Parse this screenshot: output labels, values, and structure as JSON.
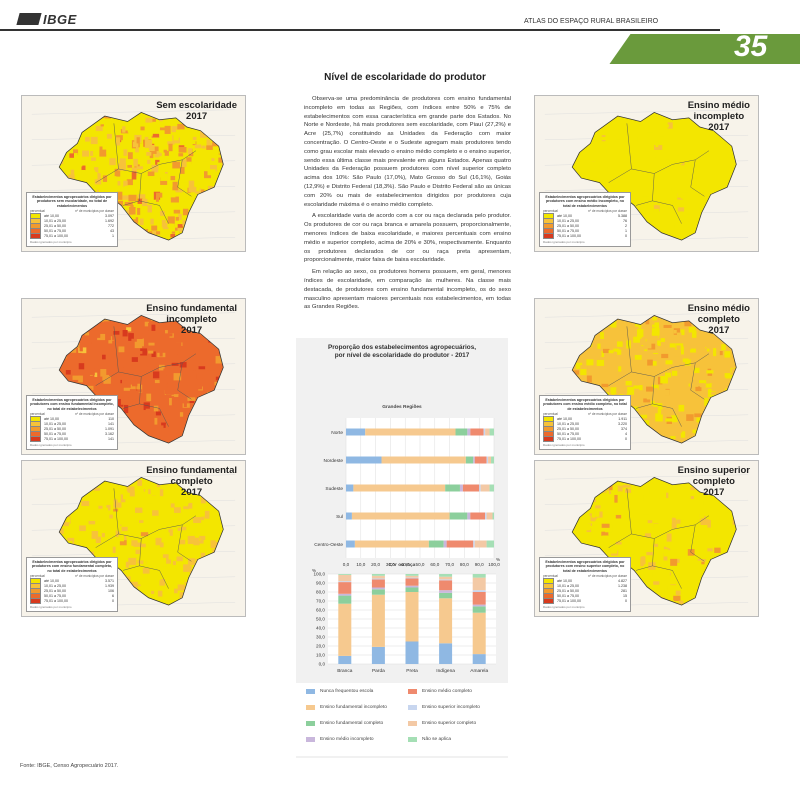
{
  "header": {
    "logo": "IBGE",
    "atlas_title": "ATLAS DO ESPAÇO RURAL BRASILEIRO",
    "page_number": "35"
  },
  "section_title": "Nível de escolaridade do produtor",
  "colors": {
    "band_green": "#6a9a3c",
    "classes": [
      "#f3e600",
      "#f7c23a",
      "#f29a2e",
      "#ec6a2c",
      "#d83a1e"
    ]
  },
  "legend_common": {
    "percentual": "percentual",
    "count_header": "nº de municípios por classe",
    "footnote": "Dados ignorados por município"
  },
  "legend_classes": [
    "até 10,00",
    "10,01 a 25,00",
    "25,01 a 50,00",
    "50,01 a 75,00",
    "75,01 a 100,00"
  ],
  "maps": [
    {
      "id": "sem-escolaridade",
      "title_lines": [
        "Sem escolaridade",
        "2017"
      ],
      "legend_title": "Estabelecimentos agropecuários dirigidos por produtores sem escolaridade, no total de estabelecimentos",
      "counts": [
        "3.097",
        "1.692",
        "772",
        "43",
        "1"
      ],
      "fill_mix": [
        0.35,
        0.35,
        0.25,
        0.05,
        0
      ]
    },
    {
      "id": "fundamental-incompleto",
      "title_lines": [
        "Ensino fundamental",
        "incompleto",
        "2017"
      ],
      "legend_title": "Estabelecimentos agropecuários dirigidos por produtores com ensino fundamental incompleto, no total de estabelecimentos",
      "counts": [
        "110",
        "141",
        "1.091",
        "3.162",
        "141"
      ],
      "fill_mix": [
        0,
        0.02,
        0.18,
        0.7,
        0.1
      ]
    },
    {
      "id": "fundamental-completo",
      "title_lines": [
        "Ensino fundamental",
        "completo",
        "2017"
      ],
      "legend_title": "Estabelecimentos agropecuários dirigidos por produtores com ensino fundamental completo, no total de estabelecimentos",
      "counts": [
        "3.571",
        "1.939",
        "106",
        "6",
        "0"
      ],
      "fill_mix": [
        0.6,
        0.37,
        0.03,
        0,
        0
      ]
    },
    {
      "id": "medio-incompleto",
      "title_lines": [
        "Ensino médio",
        "incompleto",
        "2017"
      ],
      "legend_title": "Estabelecimentos agropecuários dirigidos por produtores com ensino médio incompleto, no total de estabelecimentos",
      "counts": [
        "5.388",
        "76",
        "2",
        "1",
        "0"
      ],
      "fill_mix": [
        0.97,
        0.03,
        0,
        0,
        0
      ]
    },
    {
      "id": "medio-completo",
      "title_lines": [
        "Ensino médio",
        "completo",
        "2017"
      ],
      "legend_title": "Estabelecimentos agropecuários dirigidos por produtores com ensino médio completo, no total de estabelecimentos",
      "counts": [
        "1.911",
        "3.220",
        "374",
        "4",
        "0"
      ],
      "fill_mix": [
        0.35,
        0.58,
        0.07,
        0,
        0
      ]
    },
    {
      "id": "superior-completo",
      "title_lines": [
        "Ensino superior",
        "completo",
        "2017"
      ],
      "legend_title": "Estabelecimentos agropecuários dirigidos por produtores com ensino superior completo, no total de estabelecimentos",
      "counts": [
        "4.827",
        "1.238",
        "281",
        "15",
        "0"
      ],
      "fill_mix": [
        0.75,
        0.2,
        0.05,
        0,
        0
      ]
    }
  ],
  "paragraphs": [
    "Observa-se uma predominância de produtores com ensino fundamental incompleto em todas as Regiões, com índices entre 50% e 75% de estabelecimentos com essa característica em grande parte dos Estados. No Norte e Nordeste, há mais produtores sem escolaridade, com Piauí (27,2%) e Acre (25,7%) constituindo as Unidades da Federação com maior concentração. O Centro-Oeste e o Sudeste agregam mais produtores tendo como grau escolar mais elevado o ensino médio completo e o ensino superior, sendo essa última classe mais prevalente em alguns Estados. Apenas quatro Unidades da Federação possuem produtores com nível superior completo acima dos 10%: São Paulo (17,0%), Mato Grosso do Sul (16,1%), Goiás (12,9%) e Distrito Federal (18,3%). São Paulo e Distrito Federal são as únicas com 20% ou mais de estabelecimentos dirigidos por produtores cuja escolaridade máxima é o ensino médio completo.",
    "A escolaridade varia de acordo com a cor ou raça declarada pelo produtor. Os produtores de cor ou raça branca e amarela possuem, proporcionalmente, menores índices de baixa escolaridade, e maiores percentuais com ensino médio e superior completo, acima de 20% e 30%, respectivamente. Enquanto os produtores declarados de cor ou raça preta apresentam, proporcionalmente, maior faixa de baixa escolaridade.",
    "Em relação ao sexo, os produtores homens possuem, em geral, menores índices de escolaridade, em comparação às mulheres. Na classe mais destacada, de produtores com ensino fundamental incompleto, os do sexo masculino apresentam maiores percentuais nos estabelecimentos, em todas as Grandes Regiões."
  ],
  "chart_title": [
    "Proporção dos estabelecimentos agropecuários,",
    "por nível de escolaridade do produtor - 2017"
  ],
  "chart_data": [
    {
      "type": "bar",
      "orientation": "horizontal-stacked",
      "title": "Grandes Regiões",
      "xlabel": "%",
      "xlim": [
        0,
        100
      ],
      "x_ticks": [
        "0,0",
        "10,0",
        "20,0",
        "30,0",
        "40,0",
        "50,0",
        "60,0",
        "70,0",
        "80,0",
        "90,0",
        "100,0"
      ],
      "categories": [
        "Norte",
        "Nordeste",
        "Sudeste",
        "Sul",
        "Centro-Oeste"
      ],
      "series": [
        {
          "name": "Nunca frequentou escola",
          "color": "#8fb8e3",
          "values": [
            13,
            24,
            5,
            4,
            6
          ]
        },
        {
          "name": "Ensino fundamental incompleto",
          "color": "#f6c98f",
          "values": [
            61,
            57,
            62,
            66,
            50
          ]
        },
        {
          "name": "Ensino fundamental completo",
          "color": "#8ccf9c",
          "values": [
            8,
            5,
            10,
            12,
            10
          ]
        },
        {
          "name": "Ensino médio incompleto",
          "color": "#c9b7dc",
          "values": [
            2,
            1,
            2,
            2,
            2
          ]
        },
        {
          "name": "Ensino médio completo",
          "color": "#ef8a6e",
          "values": [
            9,
            8,
            11,
            10,
            18
          ]
        },
        {
          "name": "Ensino superior incompleto",
          "color": "#c8d6ef",
          "values": [
            1,
            1,
            1,
            1,
            1
          ]
        },
        {
          "name": "Ensino superior completo",
          "color": "#f3c9a5",
          "values": [
            3,
            2,
            6,
            4,
            8
          ]
        },
        {
          "name": "Não se aplica",
          "color": "#a5dfb5",
          "values": [
            3,
            2,
            3,
            1,
            5
          ]
        }
      ]
    },
    {
      "type": "bar",
      "orientation": "vertical-stacked",
      "title": "Cor ou raça",
      "ylabel": "%",
      "ylim": [
        0,
        100
      ],
      "y_ticks": [
        "0,0",
        "10,0",
        "20,0",
        "30,0",
        "40,0",
        "50,0",
        "60,0",
        "70,0",
        "80,0",
        "90,0",
        "100,0"
      ],
      "categories": [
        "Branca",
        "Parda",
        "Preta",
        "Indígena",
        "Amarela"
      ],
      "series": [
        {
          "name": "Nunca frequentou escola",
          "color": "#8fb8e3",
          "values": [
            9,
            19,
            25,
            23,
            11
          ]
        },
        {
          "name": "Ensino fundamental incompleto",
          "color": "#f6c98f",
          "values": [
            58,
            58,
            55,
            50,
            46
          ]
        },
        {
          "name": "Ensino fundamental completo",
          "color": "#8ccf9c",
          "values": [
            9,
            6,
            5,
            6,
            7
          ]
        },
        {
          "name": "Ensino médio incompleto",
          "color": "#c9b7dc",
          "values": [
            2,
            2,
            2,
            3,
            2
          ]
        },
        {
          "name": "Ensino médio completo",
          "color": "#ef8a6e",
          "values": [
            13,
            9,
            8,
            11,
            14
          ]
        },
        {
          "name": "Ensino superior incompleto",
          "color": "#c8d6ef",
          "values": [
            1,
            1,
            1,
            1,
            2
          ]
        },
        {
          "name": "Ensino superior completo",
          "color": "#f3c9a5",
          "values": [
            7,
            3,
            2,
            3,
            14
          ]
        },
        {
          "name": "Não se aplica",
          "color": "#a5dfb5",
          "values": [
            1,
            2,
            2,
            3,
            4
          ]
        }
      ]
    }
  ],
  "chart_legend": [
    {
      "label": "Nunca frequentou escola",
      "color": "#8fb8e3"
    },
    {
      "label": "Ensino médio completo",
      "color": "#ef8a6e"
    },
    {
      "label": "Ensino fundamental incompleto",
      "color": "#f6c98f"
    },
    {
      "label": "Ensino superior incompleto",
      "color": "#c8d6ef"
    },
    {
      "label": "Ensino fundamental completo",
      "color": "#8ccf9c"
    },
    {
      "label": "Ensino superior completo",
      "color": "#f3c9a5"
    },
    {
      "label": "Ensino médio incompleto",
      "color": "#c9b7dc"
    },
    {
      "label": "Não se aplica",
      "color": "#a5dfb5"
    }
  ],
  "source": "Fonte: IBGE, Censo Agropecuário 2017."
}
